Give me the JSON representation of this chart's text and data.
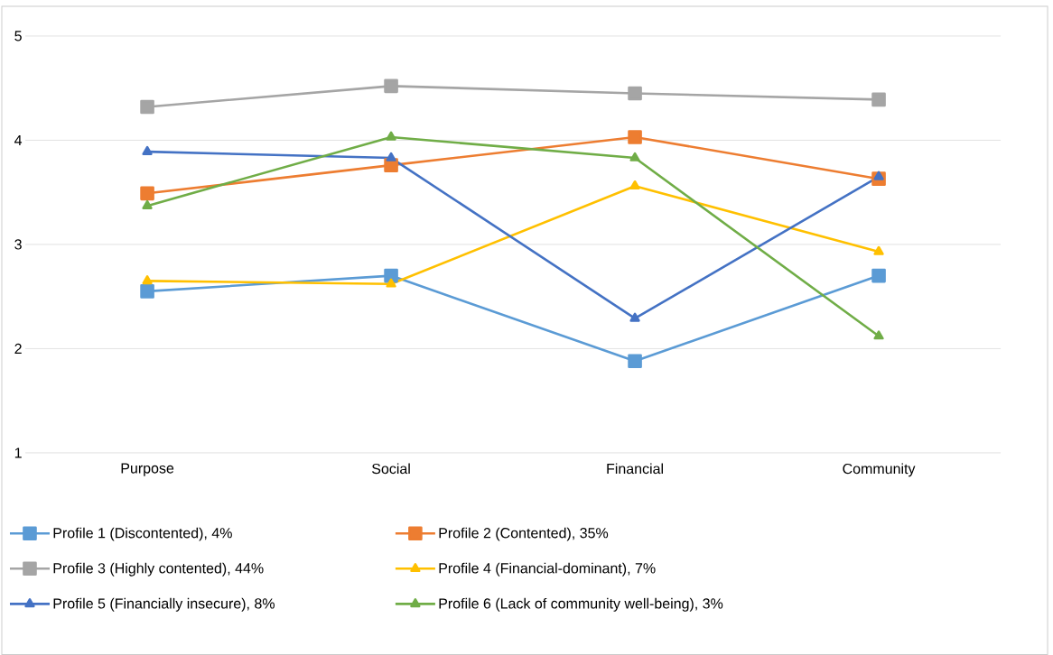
{
  "chart_data": {
    "type": "line",
    "categories": [
      "Purpose",
      "Social",
      "Financial",
      "Community"
    ],
    "series": [
      {
        "name": "Profile 1 (Discontented), 4%",
        "color": "#5b9bd5",
        "marker": "square",
        "values": [
          2.55,
          2.7,
          1.88,
          2.7
        ]
      },
      {
        "name": "Profile 2 (Contented), 35%",
        "color": "#ed7d31",
        "marker": "square",
        "values": [
          3.49,
          3.76,
          4.03,
          3.63
        ]
      },
      {
        "name": "Profile 3 (Highly contented), 44%",
        "color": "#a5a5a5",
        "marker": "square",
        "values": [
          4.32,
          4.52,
          4.45,
          4.39
        ]
      },
      {
        "name": "Profile 4 (Financial-dominant), 7%",
        "color": "#ffc000",
        "marker": "triangle",
        "values": [
          2.65,
          2.62,
          3.56,
          2.93
        ]
      },
      {
        "name": "Profile 5 (Financially insecure), 8%",
        "color": "#4472c4",
        "marker": "triangle",
        "values": [
          3.89,
          3.83,
          2.29,
          3.65
        ]
      },
      {
        "name": "Profile 6 (Lack of community well-being), 3%",
        "color": "#70ad47",
        "marker": "triangle",
        "values": [
          3.37,
          4.03,
          3.83,
          2.12
        ]
      }
    ],
    "ylim": [
      1,
      5
    ],
    "yticks": [
      1,
      2,
      3,
      4,
      5
    ],
    "grid": "y",
    "legend": "bottom",
    "line_style": "solid"
  }
}
